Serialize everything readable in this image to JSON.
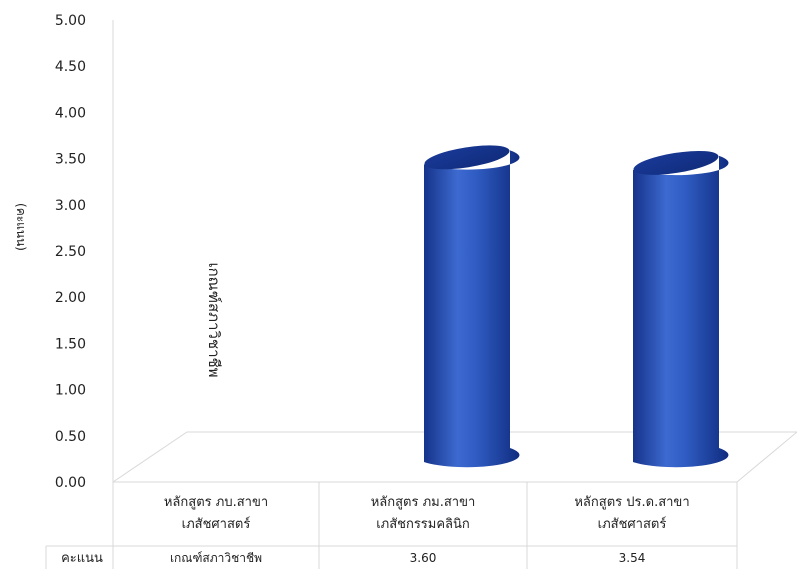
{
  "chart_data": {
    "type": "bar",
    "ylabel": "(คะแนน)",
    "ylim": [
      0,
      5
    ],
    "yticks": [
      "0.00",
      "0.50",
      "1.00",
      "1.50",
      "2.00",
      "2.50",
      "3.00",
      "3.50",
      "4.00",
      "4.50",
      "5.00"
    ],
    "categories": [
      [
        "หลักสูตร ภบ.สาขา",
        "เภสัชศาสตร์"
      ],
      [
        "หลักสูตร ภม.สาขา",
        "เภสัชกรรมคลินิก"
      ],
      [
        "หลักสูตร ปร.ด.สาขา",
        "เภสัชศาสตร์"
      ]
    ],
    "series": [
      {
        "name": "คะแนน",
        "values": [
          null,
          3.6,
          3.54
        ],
        "color": "#2a55b8"
      }
    ],
    "table_values": [
      "เกณฑ์สภาวิชาชีพ",
      "3.60",
      "3.54"
    ],
    "annotation": "เกณฑ์สภาวิชาชีพ",
    "grid": false,
    "legend": "data table"
  }
}
